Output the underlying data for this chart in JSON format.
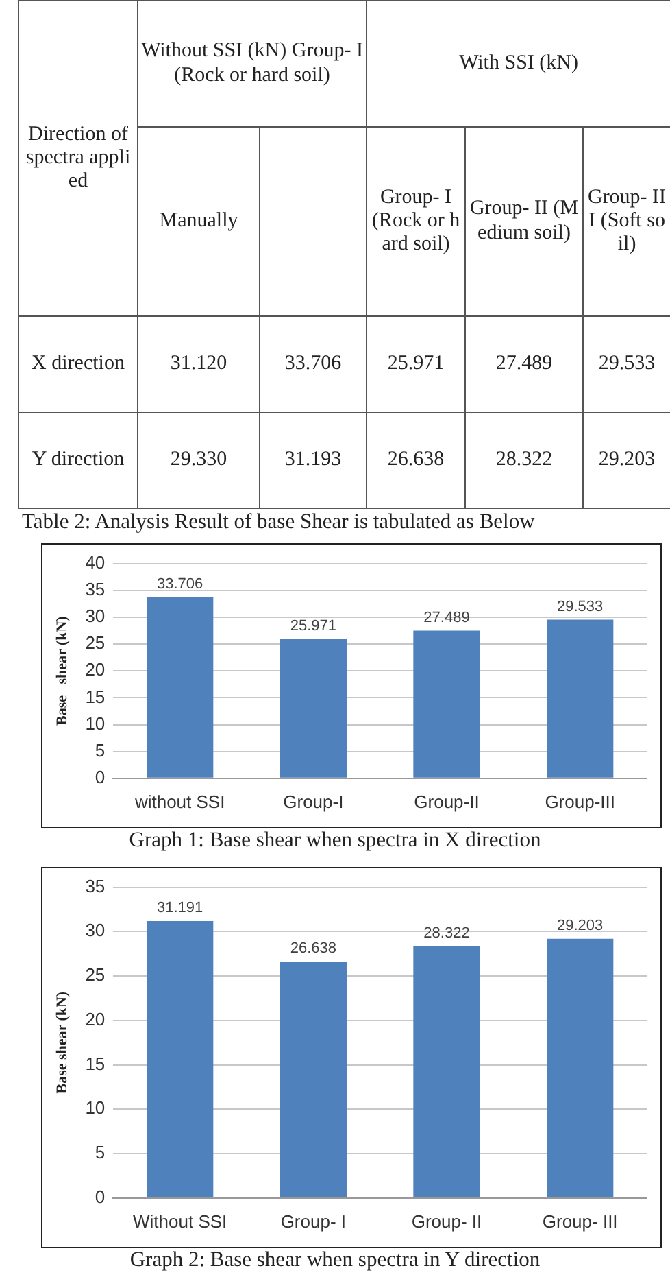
{
  "chart_data": [
    {
      "type": "other",
      "annotations": [
        "Direction of spectra applied",
        "Without SSI (kN) Group- I (Rock or hard soil)",
        "With SSI (kN)",
        "Manually",
        "Group- I (Rock or hard soil)",
        "Group- II (Medium soil)",
        "Group- III (Soft soil)",
        "X direction",
        "31.120",
        "33.706",
        "25.971",
        "27.489",
        "29.533",
        "Y direction",
        "29.330",
        "31.193",
        "26.638",
        "28.322",
        "29.203",
        "Table 2: Analysis Result of base Shear is tabulated as Below"
      ]
    },
    {
      "type": "bar",
      "title": "Graph 1: Base shear when spectra in X direction",
      "ylabel": "Base   shear (kN)",
      "categories": [
        "without SSI",
        "Group-I",
        "Group-II",
        "Group-III"
      ],
      "values": [
        33.706,
        25.971,
        27.489,
        29.533
      ],
      "color": "#4f81bd",
      "ylim": [
        0,
        40
      ],
      "yticks": [
        0,
        5,
        10,
        15,
        20,
        25,
        30,
        35,
        40
      ],
      "grid": "y",
      "data_labels": true,
      "legend": false
    },
    {
      "type": "bar",
      "title": "Graph 2: Base shear when spectra in Y direction",
      "ylabel": "Base shear (kN)",
      "categories": [
        "Without SSI",
        "Group- I",
        "Group- II",
        "Group- III"
      ],
      "values": [
        31.191,
        26.638,
        28.322,
        29.203
      ],
      "color": "#4f81bd",
      "ylim": [
        0,
        35
      ],
      "yticks": [
        0,
        5,
        10,
        15,
        20,
        25,
        30,
        35
      ],
      "grid": "y",
      "data_labels": true,
      "legend": false
    }
  ]
}
